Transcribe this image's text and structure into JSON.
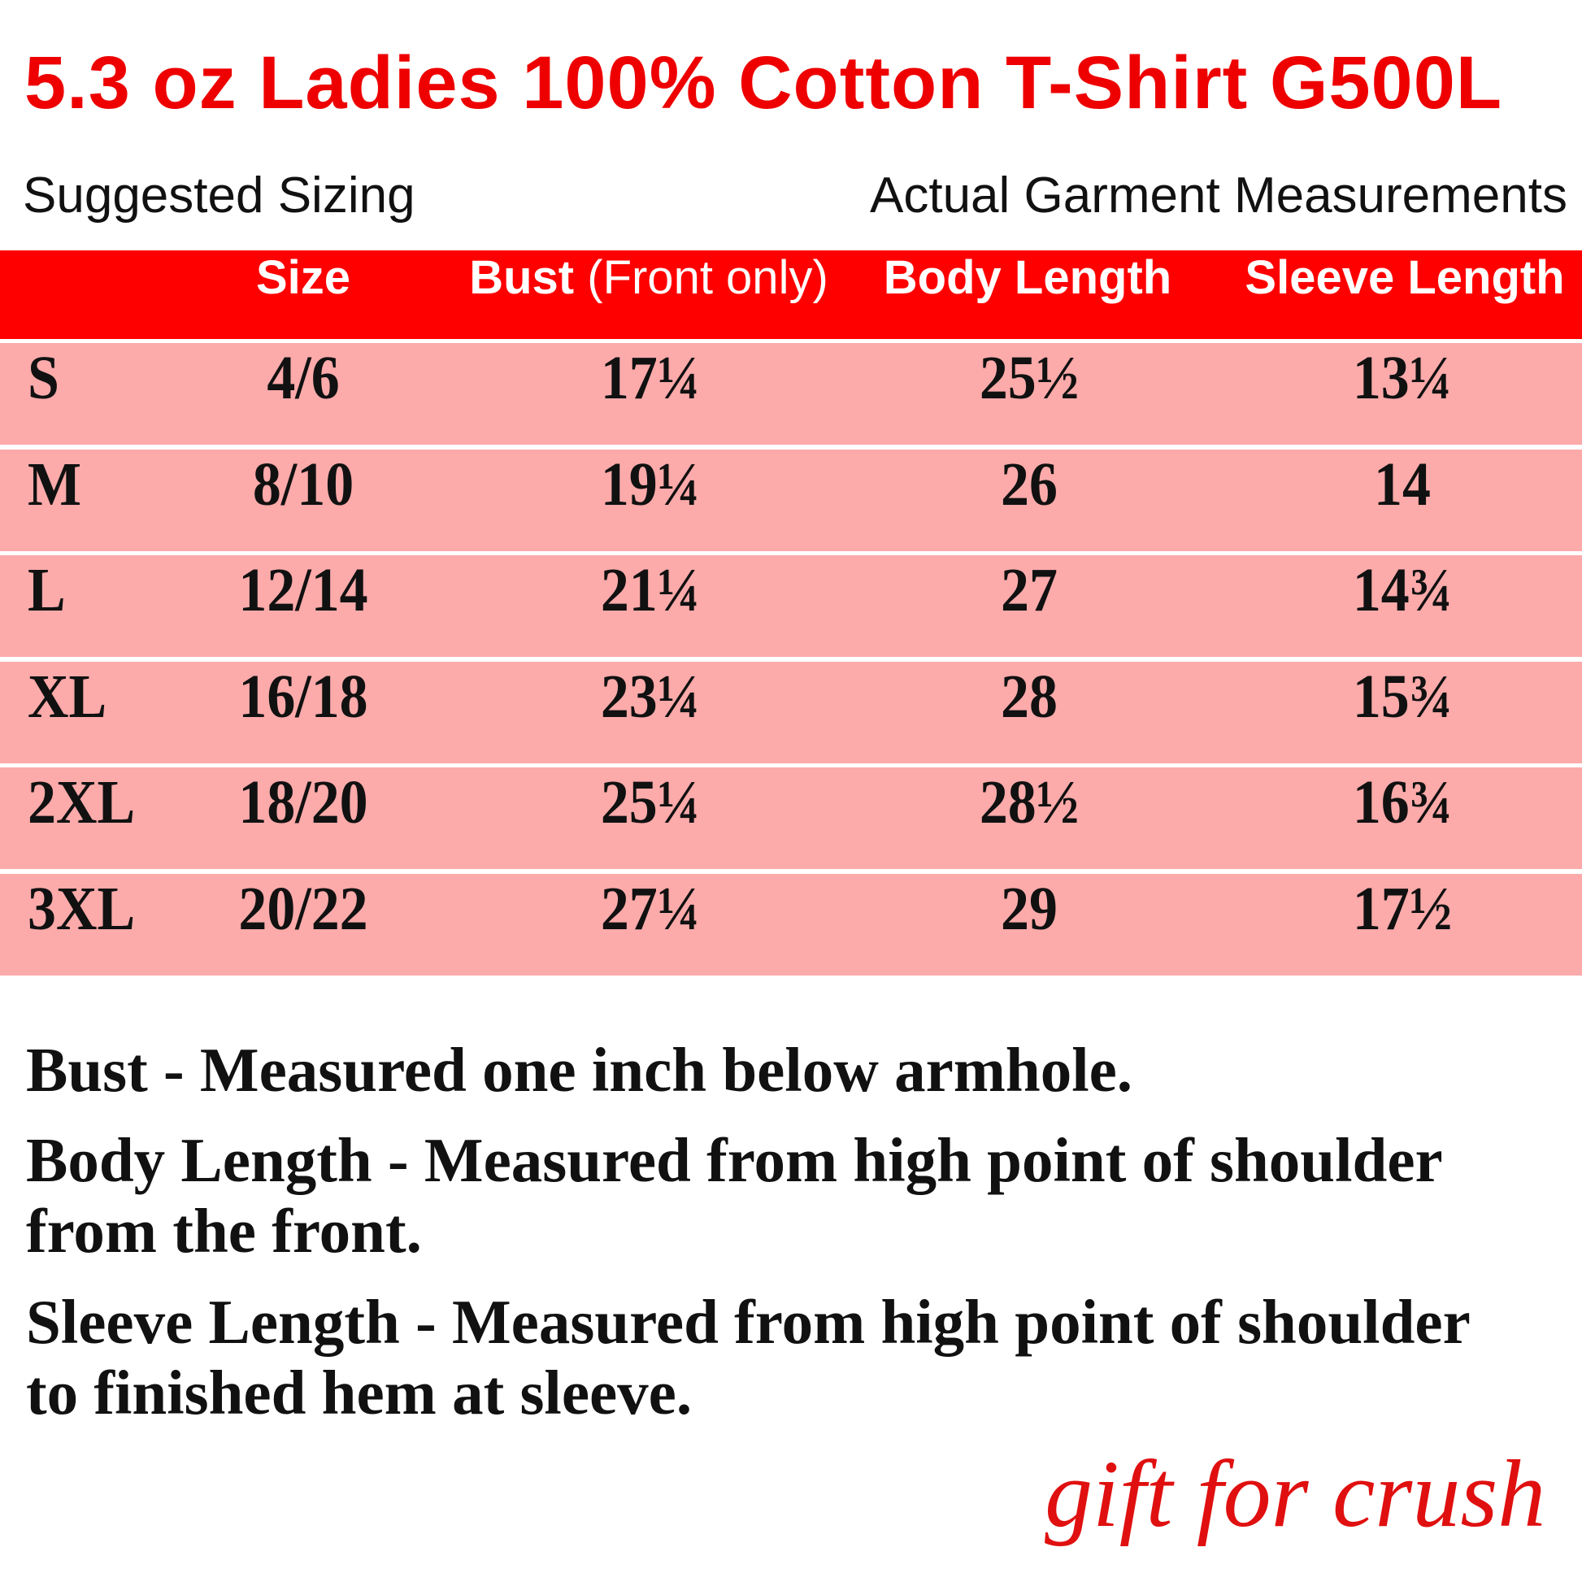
{
  "title": "5.3 oz Ladies 100% Cotton T-Shirt G500L",
  "subtitle_left": "Suggested Sizing",
  "subtitle_right": "Actual Garment Measurements",
  "colors": {
    "accent": "#ff0000",
    "row_bg": "#fcaaaa",
    "title": "#ee0000"
  },
  "table": {
    "headers": {
      "size": "Size",
      "bust": "Bust",
      "bust_note": "(Front only)",
      "body": "Body Length",
      "sleeve": "Sleeve Length"
    },
    "rows": [
      {
        "label": "S",
        "size": "4/6",
        "bust": "17¼",
        "body": "25½",
        "sleeve": "13¼"
      },
      {
        "label": "M",
        "size": "8/10",
        "bust": "19¼",
        "body": "26",
        "sleeve": "14"
      },
      {
        "label": "L",
        "size": "12/14",
        "bust": "21¼",
        "body": "27",
        "sleeve": "14¾"
      },
      {
        "label": "XL",
        "size": "16/18",
        "bust": "23¼",
        "body": "28",
        "sleeve": "15¾"
      },
      {
        "label": "2XL",
        "size": "18/20",
        "bust": "25¼",
        "body": "28½",
        "sleeve": "16¾"
      },
      {
        "label": "3XL",
        "size": "20/22",
        "bust": "27¼",
        "body": "29",
        "sleeve": "17½"
      }
    ]
  },
  "notes": [
    "Bust - Measured one inch below armhole.",
    "Body Length - Measured from high point of shoulder",
    "from the front.",
    "Sleeve Length - Measured from high point of shoulder",
    "to finished hem at sleeve."
  ],
  "brand": "gift for crush"
}
